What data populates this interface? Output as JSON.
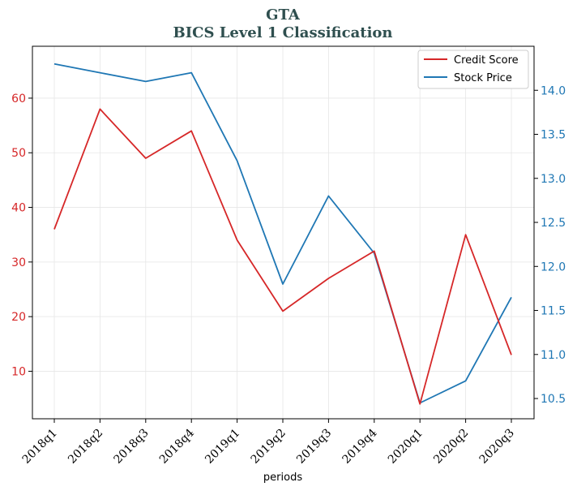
{
  "chart_data": {
    "type": "line",
    "title": "GTA",
    "subtitle": "BICS Level 1 Classification",
    "xlabel": "periods",
    "categories": [
      "2018q1",
      "2018q2",
      "2018q3",
      "2018q4",
      "2019q1",
      "2019q2",
      "2019q3",
      "2019q4",
      "2020q1",
      "2020q2",
      "2020q3"
    ],
    "series": [
      {
        "name": "Credit Score",
        "axis": "left",
        "color": "#d62728",
        "values": [
          36,
          58,
          49,
          54,
          34,
          21,
          27,
          32,
          4,
          35,
          13
        ]
      },
      {
        "name": "Stock Price",
        "axis": "right",
        "color": "#1f77b4",
        "values": [
          14.3,
          14.2,
          14.1,
          14.2,
          13.2,
          11.8,
          12.8,
          12.15,
          10.45,
          10.7,
          11.65
        ]
      }
    ],
    "y_left": {
      "ylim": [
        1.3,
        69.5
      ],
      "ticks": [
        10,
        20,
        30,
        40,
        50,
        60
      ],
      "tick_color": "#d62728"
    },
    "y_right": {
      "ylim": [
        10.27,
        14.5
      ],
      "ticks": [
        10.5,
        11.0,
        11.5,
        12.0,
        12.5,
        13.0,
        13.5,
        14.0
      ],
      "tick_color": "#1f77b4"
    },
    "grid": true,
    "legend": "top-right"
  }
}
